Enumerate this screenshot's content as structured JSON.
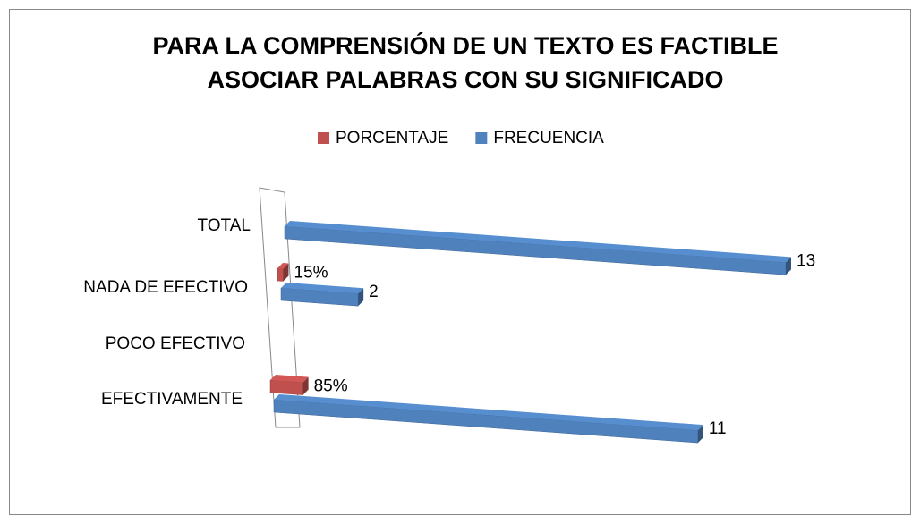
{
  "chart_data": {
    "type": "bar3d_horizontal",
    "title": [
      "PARA LA COMPRENSIÓN DE UN TEXTO ES FACTIBLE",
      "ASOCIAR PALABRAS CON SU SIGNIFICADO"
    ],
    "categories": [
      "EFECTIVAMENTE",
      "POCO EFECTIVO",
      "NADA DE EFECTIVO",
      "TOTAL"
    ],
    "series": [
      {
        "name": "PORCENTAJE",
        "color": "#c0504d",
        "values": [
          0.85,
          null,
          0.15,
          null
        ],
        "value_labels": [
          "85%",
          null,
          "15%",
          null
        ]
      },
      {
        "name": "FRECUENCIA",
        "color": "#4f81bd",
        "values": [
          11,
          null,
          2,
          13
        ]
      }
    ],
    "legend": "top"
  }
}
